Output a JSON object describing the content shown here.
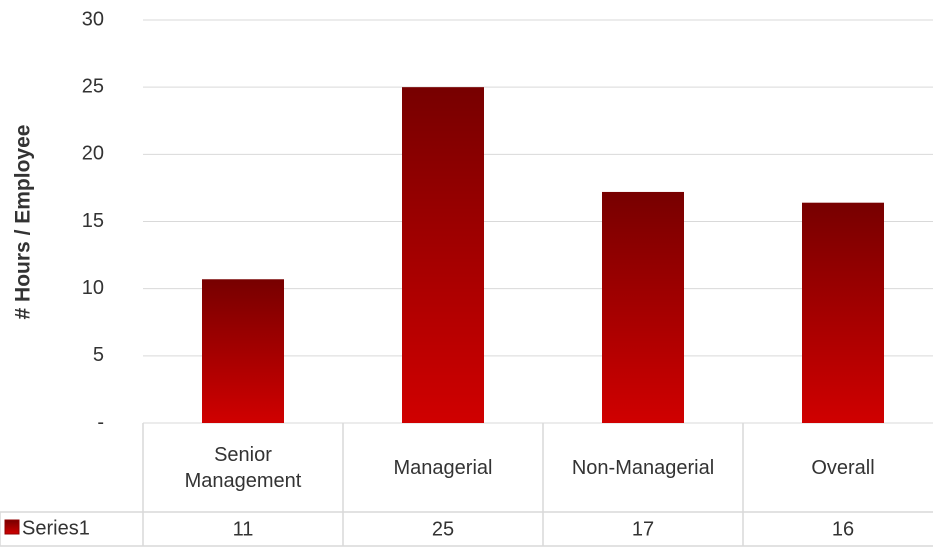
{
  "chart_data": {
    "type": "bar",
    "y_axis_label": "# Hours / Employee",
    "categories": [
      "Senior Management",
      "Managerial",
      "Non-Managerial",
      "Overall"
    ],
    "series": [
      {
        "name": "Series1",
        "color": "#d00000",
        "values": [
          10.7,
          25,
          17.2,
          16.4
        ],
        "value_labels": [
          "11",
          "25",
          "17",
          "16"
        ]
      }
    ],
    "ylim": [
      0,
      30
    ],
    "yticks": [
      {
        "value": 0,
        "label": "-"
      },
      5,
      10,
      15,
      20,
      25,
      30
    ],
    "grid": true,
    "legend": "data-table"
  }
}
